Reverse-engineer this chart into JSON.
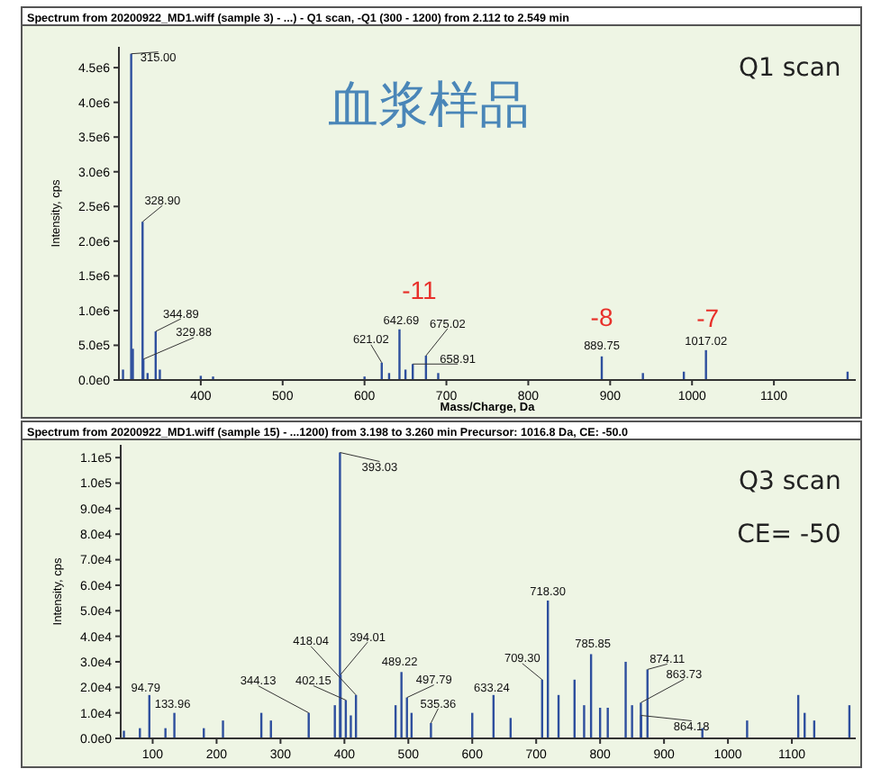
{
  "chart_data": [
    {
      "type": "bar",
      "title": "Spectrum from 20200922_MD1.wiff (sample 3) - ...) - Q1 scan, -Q1 (300 - 1200) from 2.112 to 2.549 min",
      "xlabel": "Mass/Charge, Da",
      "ylabel": "Intensity, cps",
      "color": "#2e4f9e",
      "x": [
        305,
        315,
        317,
        328.9,
        329.88,
        335,
        344.89,
        350,
        400,
        415,
        600,
        621.02,
        630,
        642.69,
        650,
        658.91,
        675.02,
        690,
        889.75,
        940,
        990,
        1017.02,
        1190
      ],
      "values": [
        150000,
        4700000,
        450000,
        2280000,
        300000,
        100000,
        700000,
        150000,
        60000,
        50000,
        50000,
        250000,
        100000,
        730000,
        150000,
        230000,
        350000,
        100000,
        340000,
        100000,
        120000,
        430000,
        120000
      ],
      "xlim": [
        300,
        1200
      ],
      "xticks": [
        400,
        500,
        600,
        700,
        800,
        900,
        1000,
        1100
      ],
      "ylim": [
        0,
        4800000
      ],
      "yticks": [
        {
          "value": 0,
          "label": "0.0e0"
        },
        {
          "value": 500000,
          "label": "5.0e5"
        },
        {
          "value": 1000000,
          "label": "1.0e6"
        },
        {
          "value": 1500000,
          "label": "1.5e6"
        },
        {
          "value": 2000000,
          "label": "2.0e6"
        },
        {
          "value": 2500000,
          "label": "2.5e6"
        },
        {
          "value": 3000000,
          "label": "3.0e6"
        },
        {
          "value": 3500000,
          "label": "3.5e6"
        },
        {
          "value": 4000000,
          "label": "4.0e6"
        },
        {
          "value": 4500000,
          "label": "4.5e6"
        }
      ],
      "annotations": [
        "血浆样品",
        "Q1 scan",
        {
          "text": "315.00",
          "x": 315,
          "y": 4700000
        },
        {
          "text": "328.90",
          "x": 328.9,
          "y": 2280000
        },
        {
          "text": "344.89",
          "x": 344.89,
          "y": 700000
        },
        {
          "text": "329.88",
          "x": 329.88,
          "y": 300000
        },
        {
          "text": "621.02",
          "x": 621.02,
          "y": 250000
        },
        {
          "text": "642.69",
          "x": 642.69,
          "y": 730000
        },
        {
          "text": "675.02",
          "x": 675.02,
          "y": 350000
        },
        {
          "text": "658.91",
          "x": 658.91,
          "y": 230000
        },
        {
          "text": "889.75",
          "x": 889.75,
          "y": 340000
        },
        {
          "text": "1017.02",
          "x": 1017.02,
          "y": 430000
        },
        {
          "text": "-11",
          "x": 642.69,
          "y": 730000
        },
        {
          "text": "-8",
          "x": 889.75,
          "y": 340000
        },
        {
          "text": "-7",
          "x": 1017.02,
          "y": 430000
        }
      ]
    },
    {
      "type": "bar",
      "title": "Spectrum from 20200922_MD1.wiff (sample 15) - ...1200) from 3.198 to 3.260 min Precursor: 1016.8 Da, CE: -50.0",
      "ylabel": "Intensity, cps",
      "color": "#2e4f9e",
      "x": [
        55,
        80,
        94.79,
        120,
        133.96,
        180,
        210,
        270,
        285,
        344.13,
        385,
        393.03,
        394.01,
        402.15,
        410,
        418.04,
        480,
        489.22,
        497.79,
        505,
        535.36,
        600,
        633.24,
        660,
        709.3,
        718.3,
        735,
        760,
        775,
        785.85,
        800,
        812,
        840,
        850,
        863.73,
        864.18,
        874.11,
        960,
        1030,
        1110,
        1120,
        1135,
        1190
      ],
      "values": [
        3000,
        4000,
        17000,
        4000,
        10000,
        4000,
        7000,
        10000,
        7000,
        10000,
        13000,
        112000,
        25000,
        15000,
        9000,
        17000,
        13000,
        26000,
        16000,
        10000,
        6000,
        10000,
        17000,
        8000,
        23000,
        54000,
        17000,
        23000,
        13000,
        33000,
        12000,
        12000,
        30000,
        13000,
        14000,
        9000,
        27000,
        4000,
        7000,
        17000,
        10000,
        7000,
        13000
      ],
      "xlim": [
        50,
        1200
      ],
      "xticks": [
        100,
        200,
        300,
        400,
        500,
        600,
        700,
        800,
        900,
        1000,
        1100
      ],
      "ylim": [
        0,
        115000
      ],
      "yticks": [
        {
          "value": 0,
          "label": "0.0e0"
        },
        {
          "value": 10000,
          "label": "1.0e4"
        },
        {
          "value": 20000,
          "label": "2.0e4"
        },
        {
          "value": 30000,
          "label": "3.0e4"
        },
        {
          "value": 40000,
          "label": "4.0e4"
        },
        {
          "value": 50000,
          "label": "5.0e4"
        },
        {
          "value": 60000,
          "label": "6.0e4"
        },
        {
          "value": 70000,
          "label": "7.0e4"
        },
        {
          "value": 80000,
          "label": "8.0e4"
        },
        {
          "value": 90000,
          "label": "9.0e4"
        },
        {
          "value": 100000,
          "label": "1.0e5"
        },
        {
          "value": 110000,
          "label": "1.1e5"
        }
      ],
      "annotations": [
        "Q3 scan",
        "CE= -50",
        {
          "text": "393.03",
          "x": 393.03,
          "y": 112000
        },
        {
          "text": "94.79",
          "x": 94.79,
          "y": 17000
        },
        {
          "text": "133.96",
          "x": 133.96,
          "y": 10000
        },
        {
          "text": "344.13",
          "x": 344.13,
          "y": 10000
        },
        {
          "text": "402.15",
          "x": 402.15,
          "y": 15000
        },
        {
          "text": "418.04",
          "x": 418.04,
          "y": 17000
        },
        {
          "text": "394.01",
          "x": 394.01,
          "y": 25000
        },
        {
          "text": "489.22",
          "x": 489.22,
          "y": 26000
        },
        {
          "text": "497.79",
          "x": 497.79,
          "y": 16000
        },
        {
          "text": "535.36",
          "x": 535.36,
          "y": 6000
        },
        {
          "text": "633.24",
          "x": 633.24,
          "y": 17000
        },
        {
          "text": "709.30",
          "x": 709.3,
          "y": 23000
        },
        {
          "text": "718.30",
          "x": 718.3,
          "y": 54000
        },
        {
          "text": "785.85",
          "x": 785.85,
          "y": 33000
        },
        {
          "text": "874.11",
          "x": 874.11,
          "y": 27000
        },
        {
          "text": "863.73",
          "x": 863.73,
          "y": 14000
        },
        {
          "text": "864.18",
          "x": 864.18,
          "y": 9000
        }
      ]
    }
  ]
}
